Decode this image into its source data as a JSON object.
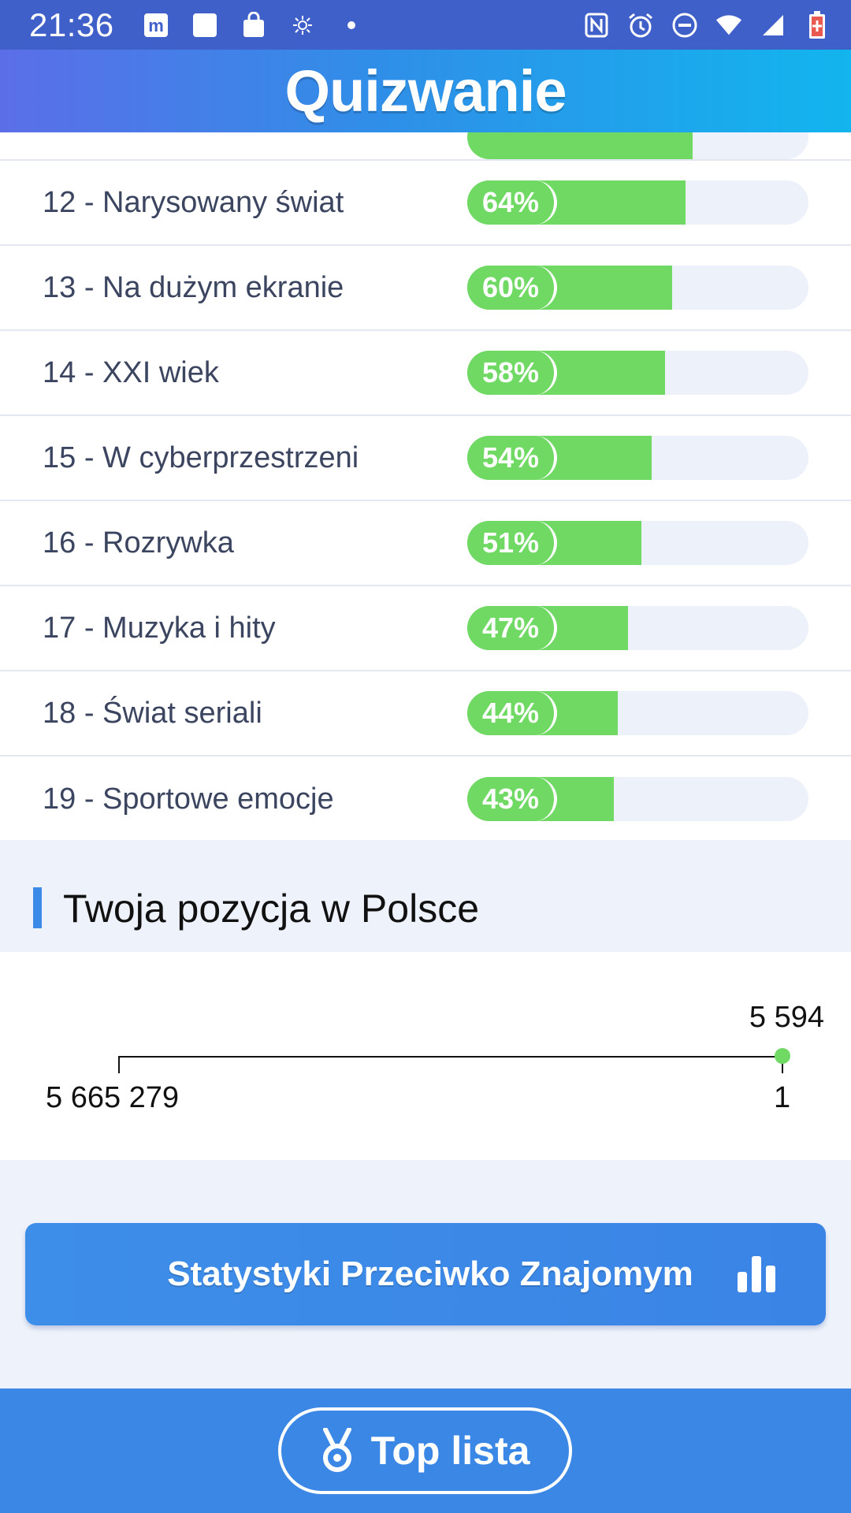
{
  "status_bar": {
    "time": "21:36",
    "left_icons": [
      "m-app-icon",
      "square-app-icon",
      "shopping-bag-icon",
      "sun-icon",
      "dot-icon"
    ],
    "right_icons": [
      "nfc-icon",
      "alarm-icon",
      "do-not-disturb-icon",
      "wifi-icon",
      "signal-icon",
      "battery-icon"
    ]
  },
  "header": {
    "title": "Quizwanie"
  },
  "categories": [
    {
      "label": "12 - Narysowany świat",
      "percent_label": "64%",
      "percent": 64
    },
    {
      "label": "13 - Na dużym ekranie",
      "percent_label": "60%",
      "percent": 60
    },
    {
      "label": "14 - XXI wiek",
      "percent_label": "58%",
      "percent": 58
    },
    {
      "label": "15 - W cyberprzestrzeni",
      "percent_label": "54%",
      "percent": 54
    },
    {
      "label": "16 - Rozrywka",
      "percent_label": "51%",
      "percent": 51
    },
    {
      "label": "17 - Muzyka i hity",
      "percent_label": "47%",
      "percent": 47
    },
    {
      "label": "18 - Świat seriali",
      "percent_label": "44%",
      "percent": 44
    },
    {
      "label": "19 - Sportowe emocje",
      "percent_label": "43%",
      "percent": 43
    }
  ],
  "partial_category_percent": 66,
  "ranking": {
    "title": "Twoja pozycja w Polsce",
    "current": "5 594",
    "min_label": "5 665 279",
    "max_label": "1"
  },
  "stats_button": {
    "label": "Statystyki Przeciwko Znajomym",
    "icon": "bar-chart-icon"
  },
  "bottom": {
    "top_list_label": "Top lista",
    "icon": "medal-icon"
  },
  "colors": {
    "accent": "#3a87e6",
    "bar_fill": "#6fd964",
    "bar_track": "#edf1fa",
    "label_text": "#3b4560"
  }
}
